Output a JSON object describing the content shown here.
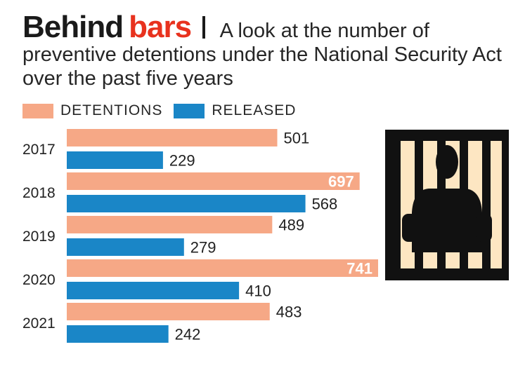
{
  "header": {
    "title_main": "Behind",
    "title_accent": "bars",
    "subtitle_first": "A look at the number of",
    "subtitle_rest": "preventive detentions under the National Security Act over the past five years"
  },
  "legend": {
    "detentions": "DETENTIONS",
    "released": "RELEASED"
  },
  "colors": {
    "detentions": "#f6a886",
    "released": "#1a86c7",
    "accent": "#e8321e"
  },
  "illustration": {
    "icon": "jail-bars-icon"
  },
  "chart_data": {
    "type": "bar",
    "orientation": "horizontal",
    "title": "Behind bars",
    "subtitle": "A look at the number of preventive detentions under the National Security Act over the past five years",
    "categories": [
      "2017",
      "2018",
      "2019",
      "2020",
      "2021"
    ],
    "series": [
      {
        "name": "DETENTIONS",
        "values": [
          501,
          697,
          489,
          741,
          483
        ]
      },
      {
        "name": "RELEASED",
        "values": [
          229,
          568,
          279,
          410,
          242
        ]
      }
    ],
    "xlim": [
      0,
      741
    ],
    "grid": false,
    "legend_position": "top-left"
  }
}
